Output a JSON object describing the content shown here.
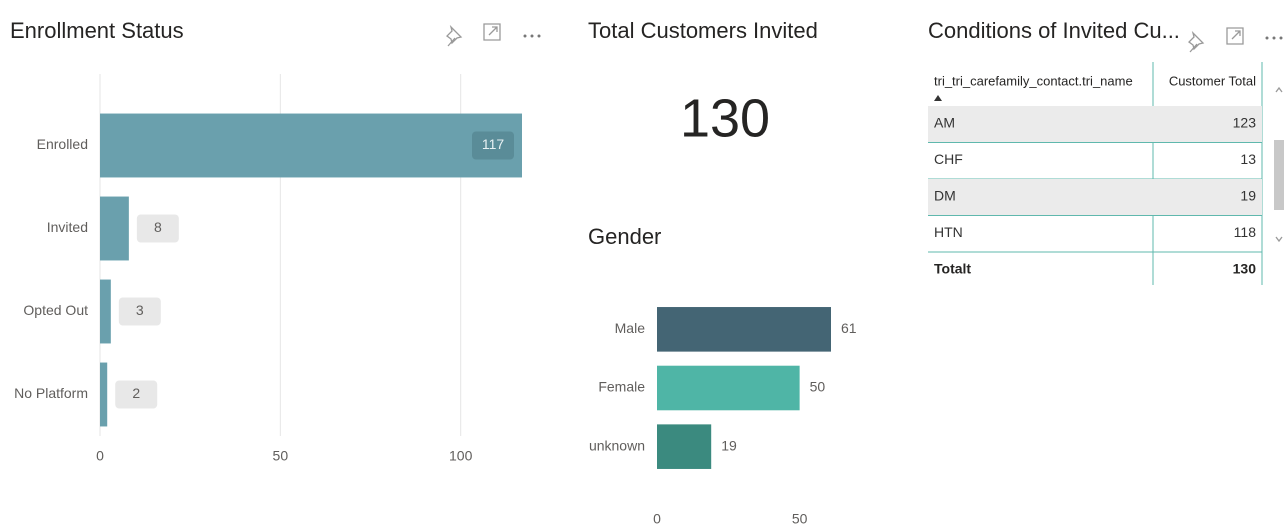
{
  "chart_data": [
    {
      "type": "bar",
      "orientation": "horizontal",
      "title": "Enrollment Status",
      "categories": [
        "Enrolled",
        "Invited",
        "Opted Out",
        "No Platform"
      ],
      "values": [
        117,
        8,
        3,
        2
      ],
      "color": "#6aa0ad",
      "xlim": [
        0,
        117
      ],
      "xticks": [
        0,
        50,
        100
      ],
      "grid": true
    },
    {
      "type": "bar",
      "orientation": "horizontal",
      "title": "Gender",
      "categories": [
        "Male",
        "Female",
        "unknown"
      ],
      "values": [
        61,
        50,
        19
      ],
      "colors": [
        "#446574",
        "#4fb5a6",
        "#3b8a7f"
      ],
      "xlim": [
        0,
        61
      ],
      "xticks": [
        0,
        50
      ],
      "grid": false
    }
  ],
  "card": {
    "title": "Total Customers Invited",
    "value": "130"
  },
  "table": {
    "title": "Conditions of Invited Cu...",
    "columns": [
      "tri_tri_carefamily_contact.tri_name",
      "Customer Total"
    ],
    "rows": [
      [
        "AM",
        "123"
      ],
      [
        "CHF",
        "13"
      ],
      [
        "DM",
        "19"
      ],
      [
        "HTN",
        "118"
      ]
    ],
    "total": [
      "Totalt",
      "130"
    ]
  }
}
